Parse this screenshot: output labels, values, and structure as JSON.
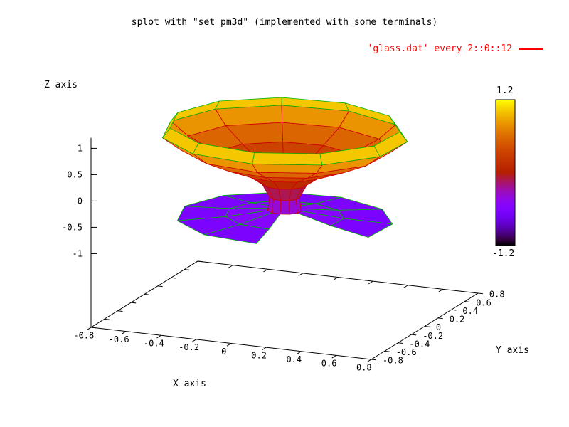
{
  "title": "splot with \"set pm3d\" (implemented with some terminals)",
  "legend": {
    "series_label": "'glass.dat' every 2::0::12",
    "line_color": "#ff0000"
  },
  "axes": {
    "x": {
      "label": "X axis",
      "tick_labels": [
        "-0.8",
        "-0.6",
        "-0.4",
        "-0.2",
        "0",
        "0.2",
        "0.4",
        "0.6",
        "0.8"
      ]
    },
    "y": {
      "label": "Y axis",
      "tick_labels": [
        "-0.8",
        "-0.6",
        "-0.4",
        "-0.2",
        "0",
        "0.2",
        "0.4",
        "0.6",
        "0.8"
      ]
    },
    "z": {
      "label": "Z axis",
      "tick_labels": [
        "-1",
        "-0.5",
        "0",
        "0.5",
        "1"
      ]
    }
  },
  "colorbar": {
    "max_label": "1.2",
    "min_label": "-1.2"
  },
  "chart_data": {
    "type": "surface3d",
    "title": "splot with \"set pm3d\" (implemented with some terminals)",
    "series": [
      {
        "name": "'glass.dat' every 2::0::12",
        "style": "pm3d colored surface with line mesh"
      }
    ],
    "x_range": [
      -0.8,
      0.8
    ],
    "y_range": [
      -0.8,
      0.8
    ],
    "z_tick_range": [
      -1,
      1
    ],
    "x_ticks": [
      -0.8,
      -0.6,
      -0.4,
      -0.2,
      0,
      0.2,
      0.4,
      0.6,
      0.8
    ],
    "y_ticks": [
      -0.8,
      -0.6,
      -0.4,
      -0.2,
      0,
      0.2,
      0.4,
      0.6,
      0.8
    ],
    "z_ticks": [
      -1,
      -0.5,
      0,
      0.5,
      1
    ],
    "colorbar_range": [
      -1.2,
      1.2
    ],
    "palette": "pm3d default rgbformulae 7,5,15 (black - purple/blue - red - orange - yellow)",
    "view": {
      "rot_x_deg": 60,
      "rot_z_deg": 30,
      "ticslevel": 0.5
    },
    "surface": {
      "description": "goblet/glass surface of revolution (glass.dat sampled with every 2::0::12)",
      "segments": 11,
      "angle_offset_deg": 14,
      "base_notch_deg": [
        -95,
        -25
      ],
      "rings": [
        {
          "z": 1.1,
          "r": 0.62
        },
        {
          "z": 0.92,
          "r": 0.66
        },
        {
          "z": 0.68,
          "r": 0.56
        },
        {
          "z": 0.45,
          "r": 0.4
        },
        {
          "z": 0.22,
          "r": 0.22
        },
        {
          "z": 0.0,
          "r": 0.12
        },
        {
          "z": -0.25,
          "r": 0.08
        },
        {
          "z": -0.5,
          "r": 0.09
        },
        {
          "z": -0.6,
          "r": 0.32
        },
        {
          "z": -0.66,
          "r": 0.58
        }
      ]
    },
    "mesh_colors": {
      "bowl": "#cc0000",
      "base": "#00b400",
      "rim": "#00b400"
    },
    "background": "#ffffff"
  }
}
